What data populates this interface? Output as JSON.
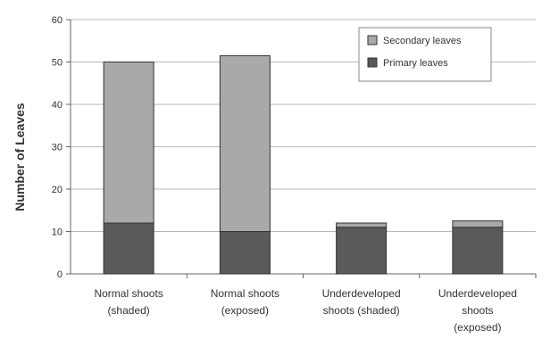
{
  "chart_data": {
    "type": "bar",
    "stacked": true,
    "ylabel": "Number of Leaves",
    "ylim": [
      0,
      60
    ],
    "yticks": [
      "0",
      "10",
      "20",
      "30",
      "40",
      "50",
      "60"
    ],
    "grid": true,
    "legend_position": "top-right",
    "categories": [
      [
        "Normal shoots",
        "(shaded)"
      ],
      [
        "Normal shoots",
        "(exposed)"
      ],
      [
        "Underdeveloped",
        "shoots (shaded)"
      ],
      [
        "Underdeveloped",
        "shoots",
        "(exposed)"
      ]
    ],
    "series": [
      {
        "name": "Primary leaves",
        "color": "#5a5a5a",
        "values": [
          12,
          10,
          11,
          11
        ]
      },
      {
        "name": "Secondary leaves",
        "color": "#a9a9a9",
        "values": [
          38,
          41.5,
          1,
          1.5
        ]
      }
    ],
    "legend_order": [
      "Secondary leaves",
      "Primary leaves"
    ]
  }
}
